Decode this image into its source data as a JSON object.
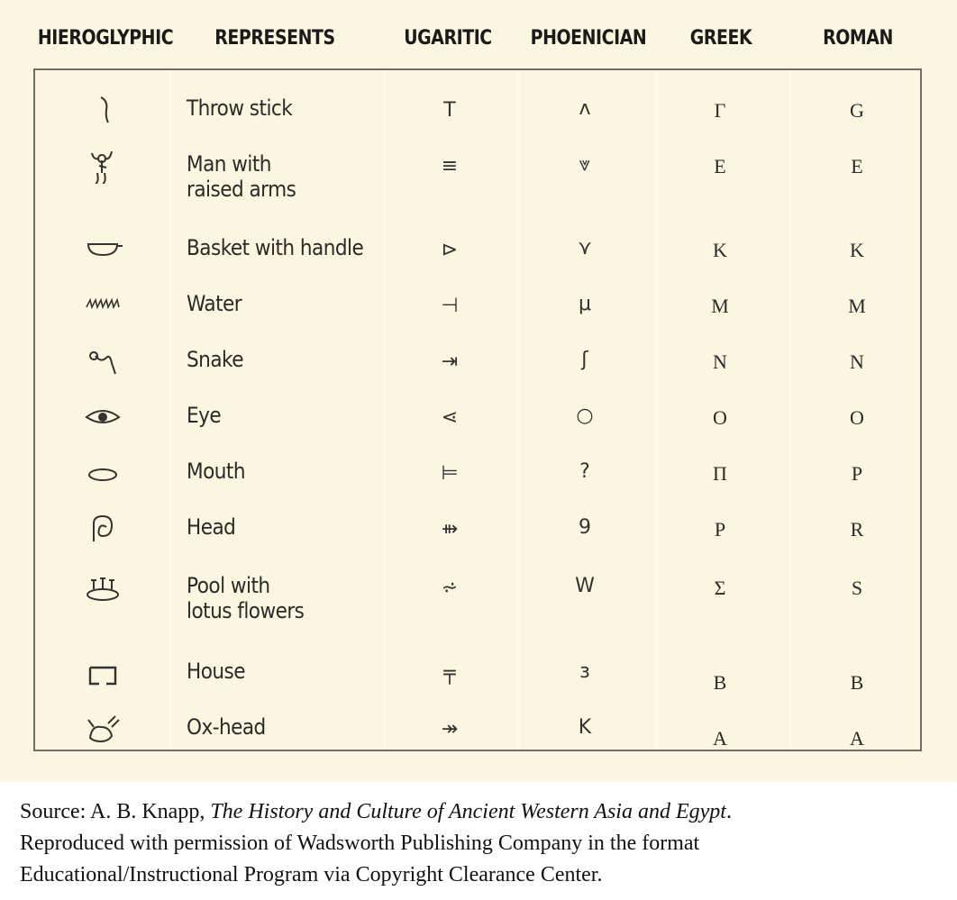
{
  "headers": [
    "HIEROGLYPHIC",
    "REPRESENTS",
    "UGARITIC",
    "PHOENICIAN",
    "GREEK",
    "ROMAN"
  ],
  "rows": [
    {
      "hieroglyph": "throw-stick-glyph",
      "represents": "Throw stick",
      "ugaritic": "T",
      "phoenician": "ʌ",
      "greek": "Γ",
      "roman": "G"
    },
    {
      "hieroglyph": "man-raised-arms-glyph",
      "represents": "Man with\nraised arms",
      "ugaritic": "≡",
      "phoenician": "⩔",
      "greek": "E",
      "roman": "E"
    },
    {
      "hieroglyph": "basket-glyph",
      "represents": "Basket with handle",
      "ugaritic": "⊳",
      "phoenician": "⋎",
      "greek": "K",
      "roman": "K"
    },
    {
      "hieroglyph": "water-glyph",
      "represents": "Water",
      "ugaritic": "⊣",
      "phoenician": "μ",
      "greek": "M",
      "roman": "M"
    },
    {
      "hieroglyph": "snake-glyph",
      "represents": "Snake",
      "ugaritic": "⇥",
      "phoenician": "ʃ",
      "greek": "N",
      "roman": "N"
    },
    {
      "hieroglyph": "eye-glyph",
      "represents": "Eye",
      "ugaritic": "⋖",
      "phoenician": "○",
      "greek": "O",
      "roman": "O"
    },
    {
      "hieroglyph": "mouth-glyph",
      "represents": "Mouth",
      "ugaritic": "⊨",
      "phoenician": "?",
      "greek": "Π",
      "roman": "P"
    },
    {
      "hieroglyph": "head-glyph",
      "represents": "Head",
      "ugaritic": "⇻",
      "phoenician": "9",
      "greek": "P",
      "roman": "R"
    },
    {
      "hieroglyph": "pool-lotus-glyph",
      "represents": "Pool with\nlotus flowers",
      "ugaritic": "⩫",
      "phoenician": "W",
      "greek": "Σ",
      "roman": "S"
    },
    {
      "hieroglyph": "house-glyph",
      "represents": "House",
      "ugaritic": "╤",
      "phoenician": "з",
      "greek": "B",
      "roman": "B"
    },
    {
      "hieroglyph": "ox-head-glyph",
      "represents": "Ox-head",
      "ugaritic": "↠",
      "phoenician": "K",
      "greek": "A",
      "roman": "A"
    }
  ],
  "source": {
    "prefix": "Source: A. B. Knapp, ",
    "title": "The History and Culture of Ancient Western Asia and Egypt",
    "suffix": ".",
    "line2": "Reproduced with permission of Wadsworth Publishing Company in the format",
    "line3": "Educational/Instructional Program via Copyright Clearance Center."
  }
}
